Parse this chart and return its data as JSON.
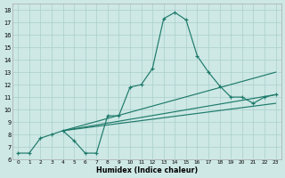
{
  "title": "",
  "xlabel": "Humidex (Indice chaleur)",
  "background_color": "#cde8e5",
  "grid_color": "#aacfcc",
  "line_color": "#1e7a6a",
  "xlim": [
    -0.5,
    23.5
  ],
  "ylim": [
    6.0,
    18.5
  ],
  "xticks": [
    0,
    1,
    2,
    3,
    4,
    5,
    6,
    7,
    8,
    9,
    10,
    11,
    12,
    13,
    14,
    15,
    16,
    17,
    18,
    19,
    20,
    21,
    22,
    23
  ],
  "yticks": [
    6,
    7,
    8,
    9,
    10,
    11,
    12,
    13,
    14,
    15,
    16,
    17,
    18
  ],
  "main_x": [
    0,
    1,
    2,
    3,
    4,
    5,
    6,
    7,
    8,
    9,
    10,
    11,
    12,
    13,
    14,
    15,
    16,
    17,
    18,
    19,
    20,
    21,
    22,
    23
  ],
  "main_y": [
    6.5,
    6.5,
    7.7,
    8.0,
    8.3,
    7.5,
    6.5,
    6.5,
    9.5,
    9.5,
    11.8,
    12.0,
    13.3,
    17.3,
    17.8,
    17.2,
    14.3,
    13.0,
    11.9,
    11.0,
    11.0,
    10.5,
    11.0,
    11.2
  ],
  "line1_start_x": 4,
  "line1_start_y": 8.3,
  "line1_end_x": 23,
  "line1_end_y": 13.0,
  "line2_start_x": 4,
  "line2_start_y": 8.3,
  "line2_end_x": 23,
  "line2_end_y": 11.2,
  "line3_start_x": 4,
  "line3_start_y": 8.3,
  "line3_end_x": 23,
  "line3_end_y": 10.5
}
